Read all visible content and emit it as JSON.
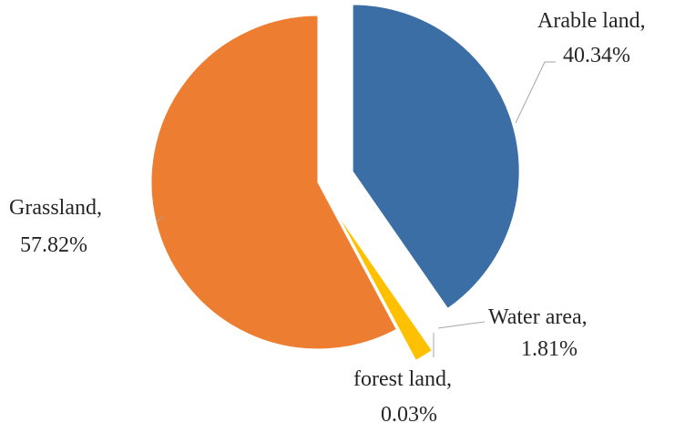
{
  "chart_data": {
    "type": "pie",
    "title": "",
    "slices": [
      {
        "label": "Arable land",
        "value": 40.34,
        "display": "40.34%",
        "color": "#3a6ea5",
        "exploded": true
      },
      {
        "label": "Water area",
        "value": 1.81,
        "display": "1.81%",
        "color": "#ffc000",
        "exploded": true
      },
      {
        "label": "forest land",
        "value": 0.03,
        "display": "0.03%",
        "color": "#5b9bd5",
        "exploded": true
      },
      {
        "label": "Grassland",
        "value": 57.82,
        "display": "57.82%",
        "color": "#ed7d31",
        "exploded": false
      }
    ]
  }
}
